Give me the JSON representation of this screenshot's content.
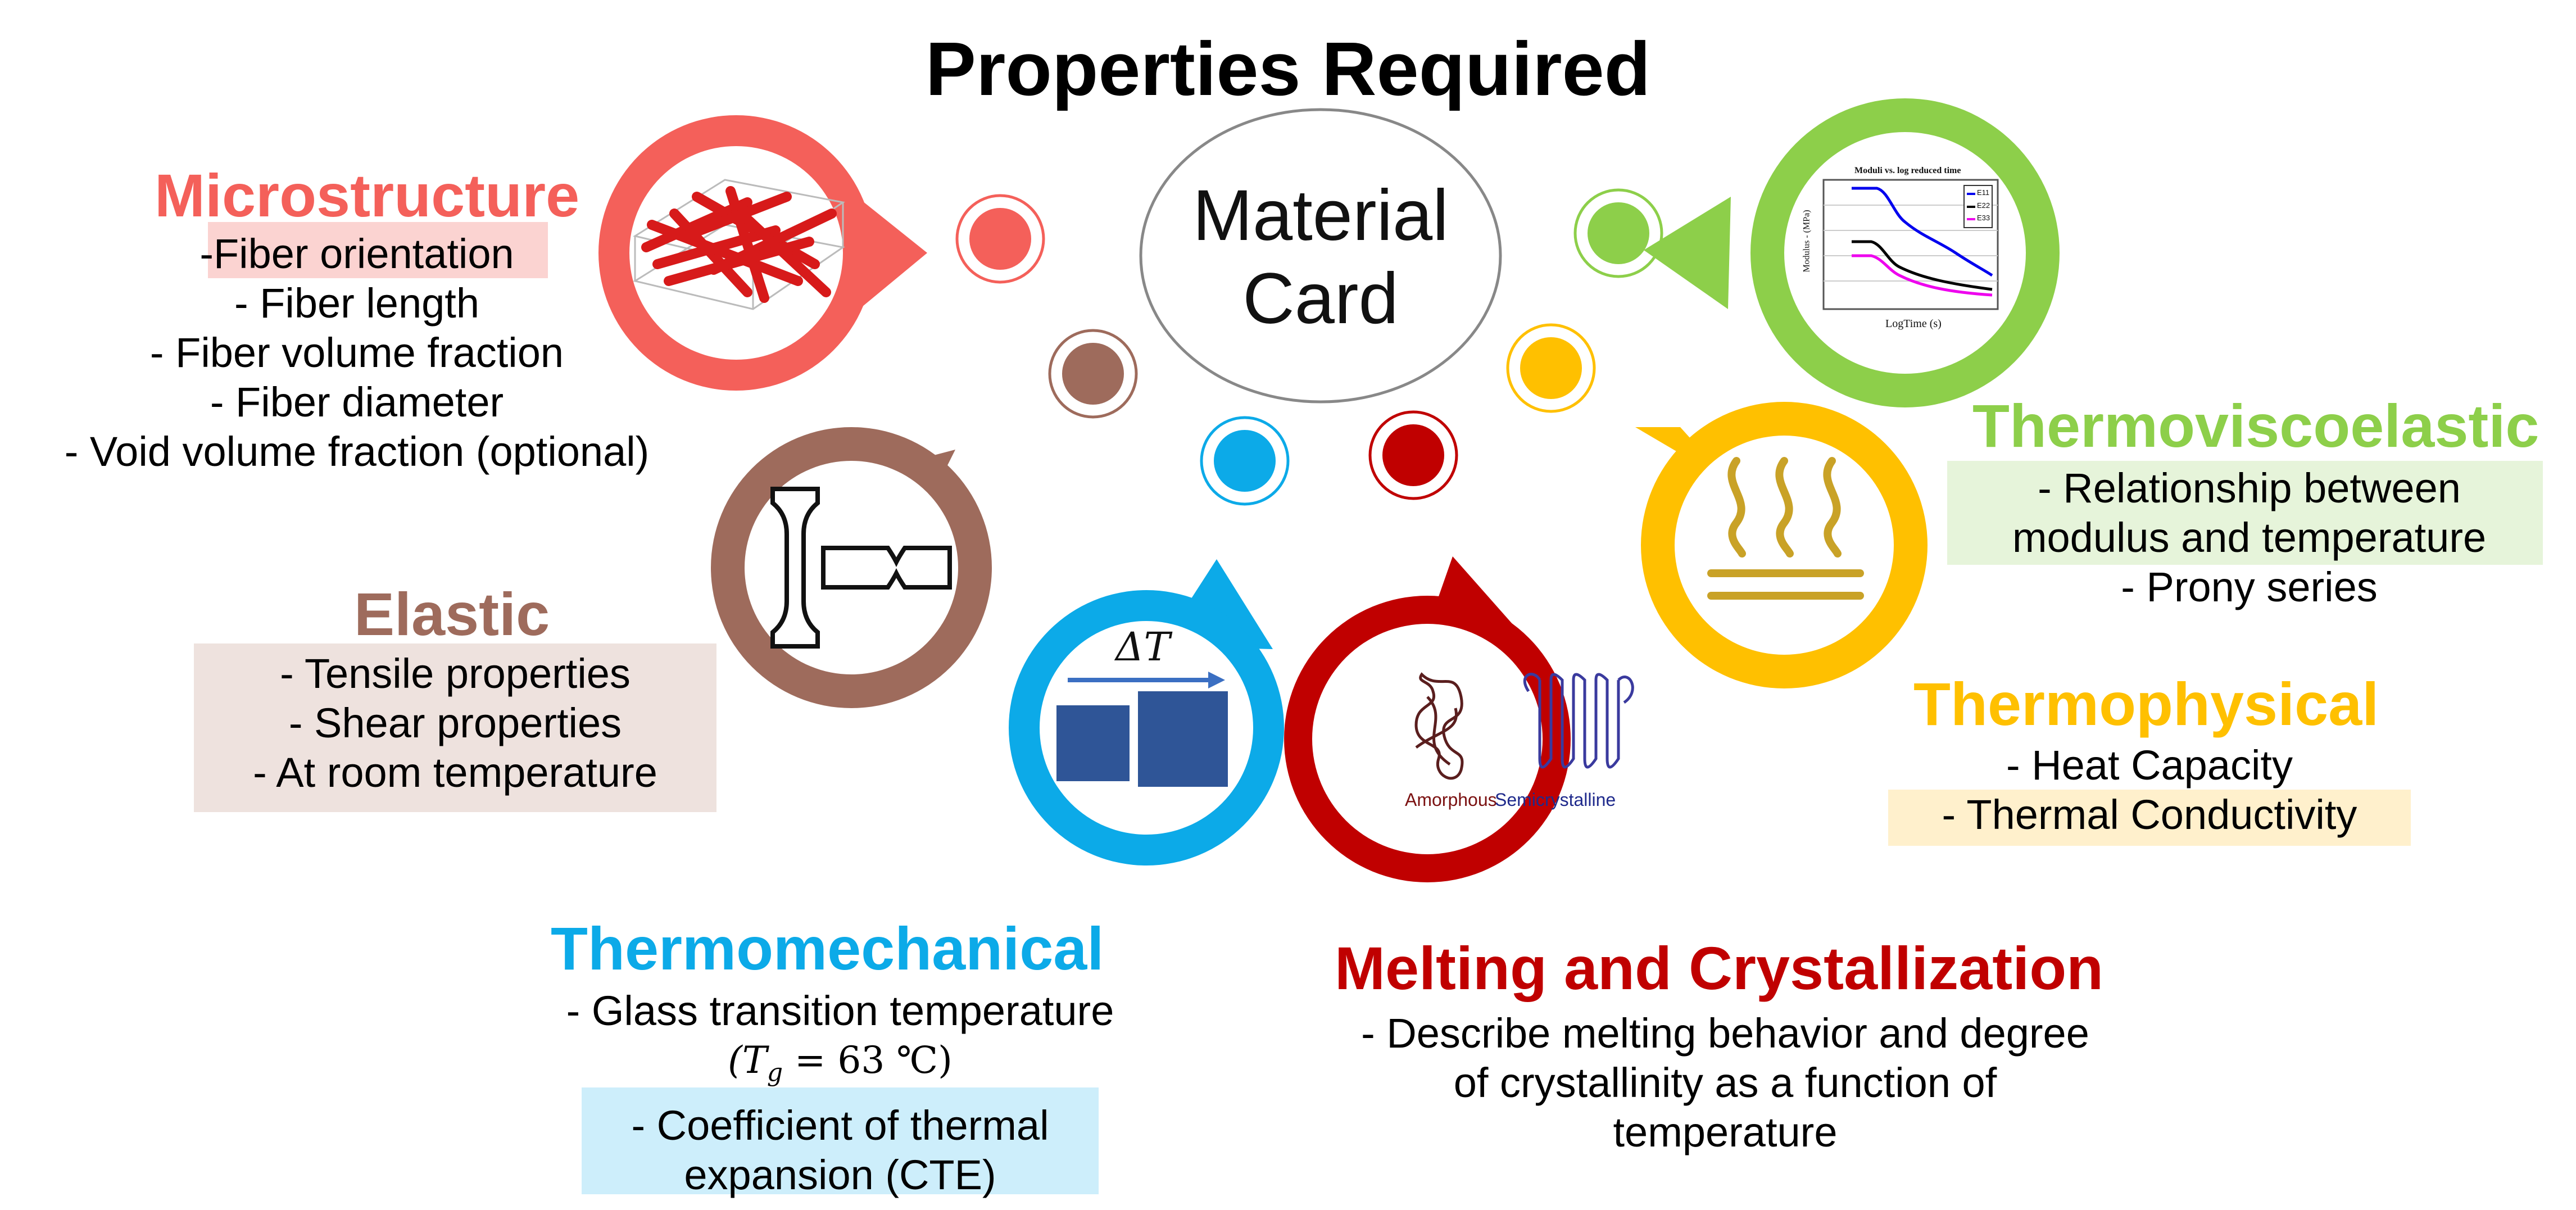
{
  "title": "Properties Required",
  "center": {
    "line1": "Material",
    "line2": "Card"
  },
  "colors": {
    "microstructure": "#F4605A",
    "elastic": "#9E6B5C",
    "thermomechanical": "#0CAAE8",
    "melting": "#C00000",
    "thermophysical": "#FFC000",
    "thermoviscoelastic": "#8DCF4A"
  },
  "microstructure": {
    "heading": "Microstructure",
    "items": [
      "-Fiber orientation",
      "-    Fiber length",
      "-    Fiber volume fraction",
      "-    Fiber diameter",
      "-    Void volume fraction (optional)"
    ],
    "icon": "fiber-network-icon"
  },
  "elastic": {
    "heading": "Elastic",
    "items": [
      "- Tensile properties",
      "-    Shear properties",
      "-    At room temperature"
    ],
    "icon": "tensile-specimen-icon"
  },
  "thermomechanical": {
    "heading": "Thermomechanical",
    "items": [
      "-    Glass transition temperature",
      "(T",
      "g",
      " = 63 ℃)",
      "-    Coefficient of thermal",
      "expansion (CTE)"
    ],
    "delta_label": "ΔT",
    "icon": "thermal-expansion-icon"
  },
  "melting": {
    "heading": "Melting and Crystallization",
    "items": [
      "- Describe melting behavior and degree",
      "of crystallinity as a function of",
      "temperature"
    ],
    "amorphous": "Amorphous",
    "semicrystalline": "Semicrystalline",
    "icon": "polymer-chain-icon"
  },
  "thermophysical": {
    "heading": "Thermophysical",
    "items": [
      "-  Heat Capacity",
      "-  Thermal Conductivity"
    ],
    "icon": "heat-waves-icon"
  },
  "thermoviscoelastic": {
    "heading": "Thermoviscoelastic",
    "items": [
      "-    Relationship between",
      "modulus and temperature",
      "-    Prony series"
    ],
    "icon": "modulus-chart-icon",
    "mini_chart": {
      "title": "Moduli vs. log reduced time",
      "xlabel": "LogTime (s)",
      "ylabel": "Modulus - (MPa)",
      "legend": [
        "E11",
        "E22",
        "E33"
      ]
    }
  }
}
